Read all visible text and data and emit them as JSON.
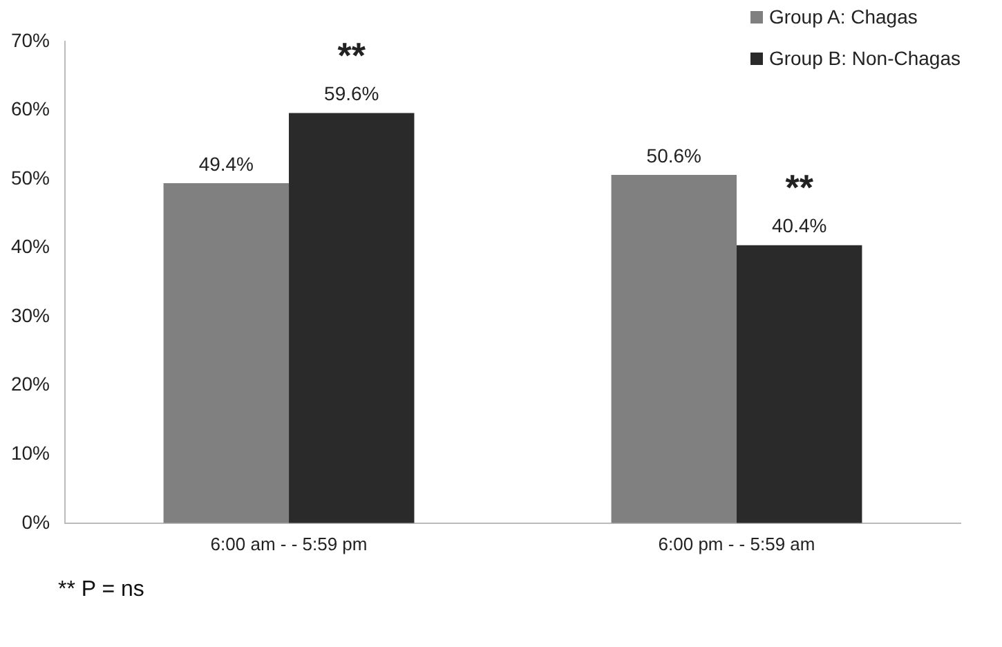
{
  "chart_data": {
    "type": "bar",
    "categories": [
      "6:00 am - - 5:59 pm",
      "6:00 pm - - 5:59 am"
    ],
    "series": [
      {
        "name": "Group A: Chagas",
        "color": "#808080",
        "values": [
          49.4,
          50.6
        ],
        "value_labels": [
          "49.4%",
          "50.6%"
        ]
      },
      {
        "name": "Group B: Non-Chagas",
        "color": "#2a2a2a",
        "values": [
          59.6,
          40.4
        ],
        "value_labels": [
          "59.6%",
          "40.4%"
        ]
      }
    ],
    "ylim": [
      0,
      70
    ],
    "yticks": [
      {
        "value": 0,
        "label": "0%"
      },
      {
        "value": 10,
        "label": "10%"
      },
      {
        "value": 20,
        "label": "20%"
      },
      {
        "value": 30,
        "label": "30%"
      },
      {
        "value": 40,
        "label": "40%"
      },
      {
        "value": 50,
        "label": "50%"
      },
      {
        "value": 60,
        "label": "60%"
      },
      {
        "value": 70,
        "label": "70%"
      }
    ],
    "grid": false,
    "legend": "top right",
    "annotations": [
      "**",
      "**",
      "** P = ns"
    ]
  }
}
